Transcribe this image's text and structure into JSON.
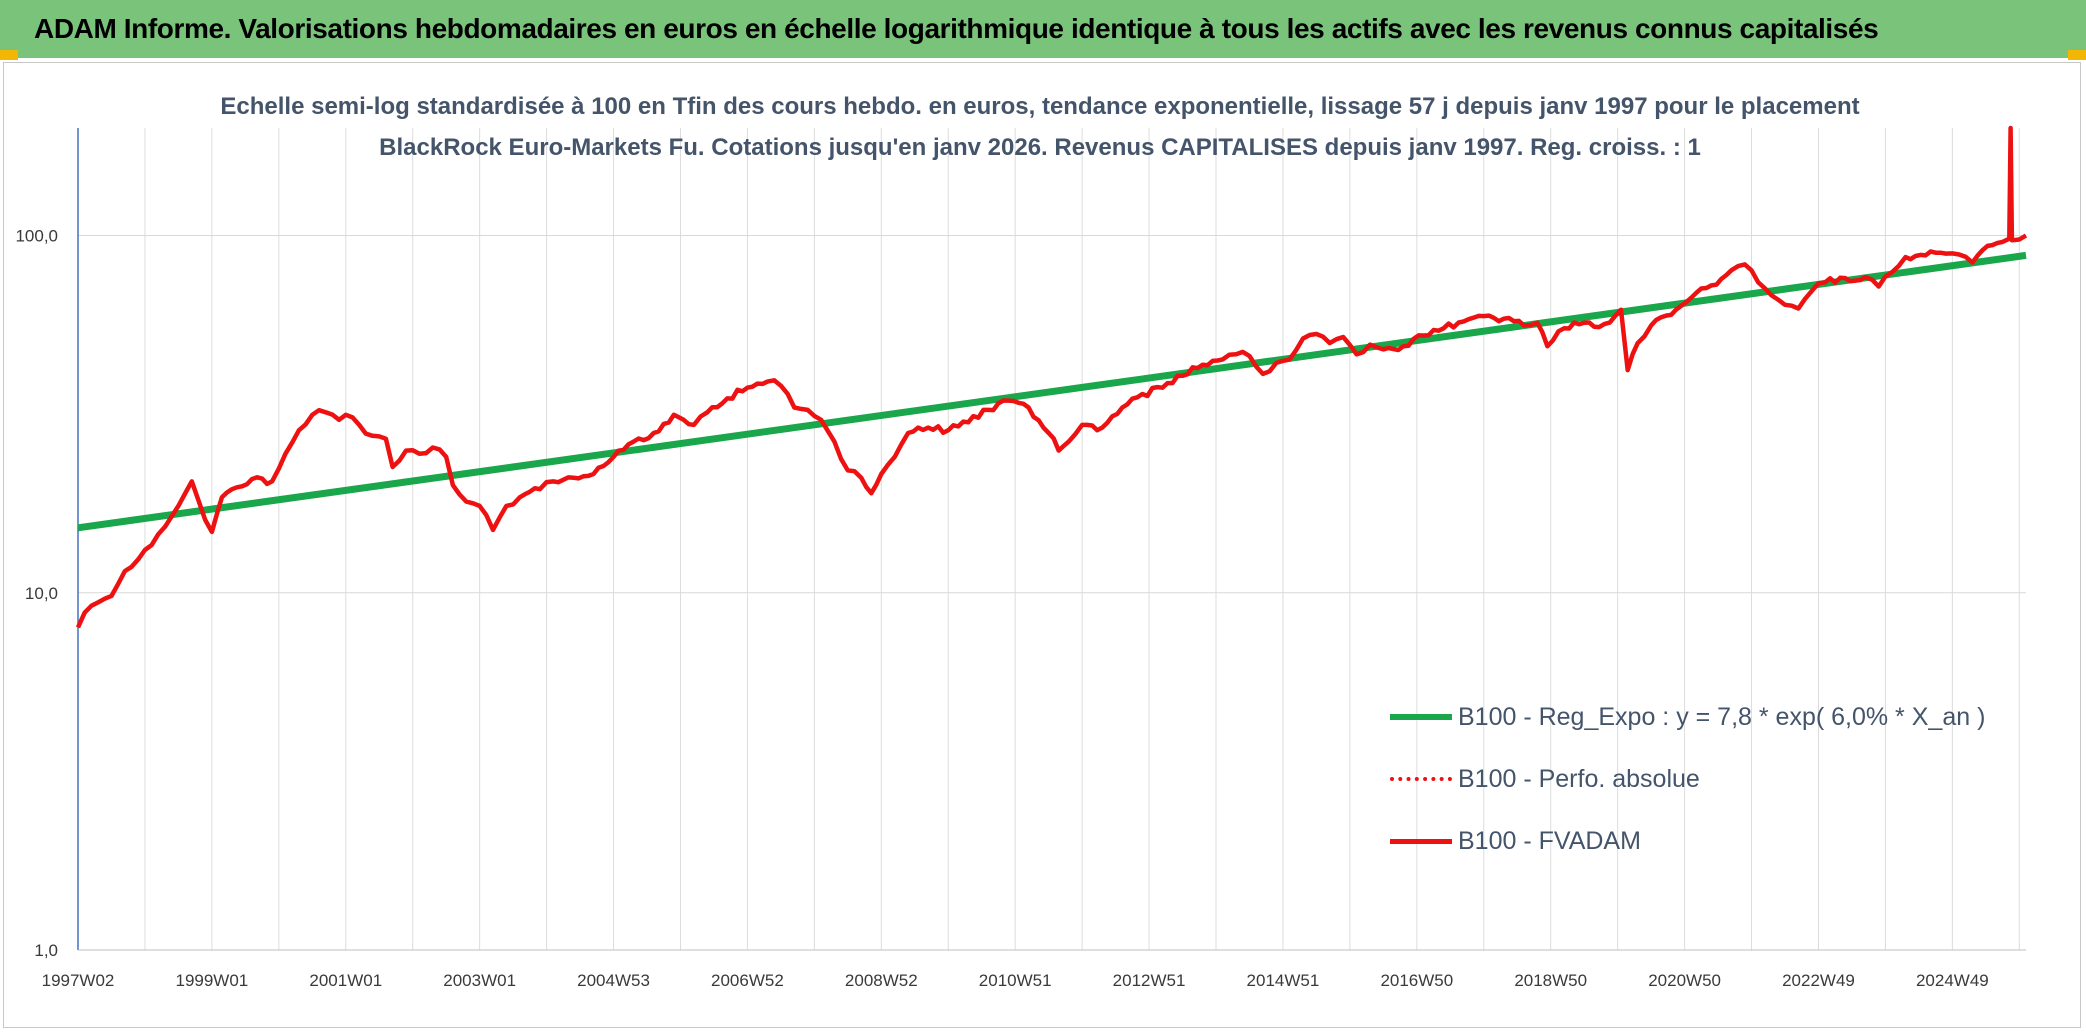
{
  "banner": {
    "title": "ADAM Informe. Valorisations hebdomadaires en euros en échelle logarithmique identique à tous les actifs avec les revenus connus capitalisés"
  },
  "colors": {
    "banner": "#79c47a",
    "corner_marks": "#f2b705",
    "trend_line": "#1aa64a",
    "price_line": "#ee1111",
    "text": "#44546a"
  },
  "chart_data": {
    "type": "line",
    "title": "Echelle semi-log standardisée à 100 en Tfin des cours hebdo. en euros, tendance exponentielle, lissage 57 j depuis janv 1997 pour le placement BlackRock Euro-Markets Fu. Cotations jusqu'en janv 2026. Revenus CAPITALISES depuis janv 1997. Reg. croiss. : 1",
    "xlabel": "",
    "ylabel": "",
    "y_scale": "log",
    "ylim": [
      1,
      200
    ],
    "xlim": [
      1997.0,
      2026.1
    ],
    "grid": true,
    "legend_position": "bottom-right",
    "y_ticks": [
      {
        "value": 1,
        "label": "1,0"
      },
      {
        "value": 10,
        "label": "10,0"
      },
      {
        "value": 100,
        "label": "100,0"
      }
    ],
    "x_ticks": [
      {
        "value": 1997.0,
        "label": "1997W02"
      },
      {
        "value": 1999.0,
        "label": "1999W01"
      },
      {
        "value": 2001.0,
        "label": "2001W01"
      },
      {
        "value": 2003.0,
        "label": "2003W01"
      },
      {
        "value": 2005.0,
        "label": "2004W53"
      },
      {
        "value": 2007.0,
        "label": "2006W52"
      },
      {
        "value": 2009.0,
        "label": "2008W52"
      },
      {
        "value": 2011.0,
        "label": "2010W51"
      },
      {
        "value": 2013.0,
        "label": "2012W51"
      },
      {
        "value": 2015.0,
        "label": "2014W51"
      },
      {
        "value": 2017.0,
        "label": "2016W50"
      },
      {
        "value": 2019.0,
        "label": "2018W50"
      },
      {
        "value": 2021.0,
        "label": "2020W50"
      },
      {
        "value": 2023.0,
        "label": "2022W49"
      },
      {
        "value": 2025.0,
        "label": "2024W49"
      }
    ],
    "series": [
      {
        "name": "B100 - Reg_Expo : y = 7,8 * exp( 6,0% *  X_an )",
        "style": "solid-thick",
        "color": "#1aa64a",
        "x": [
          1997.0,
          2026.1
        ],
        "y": [
          15.2,
          88
        ]
      },
      {
        "name": "B100 - Perfo. absolue",
        "style": "dotted",
        "color": "#ee1111",
        "x": [],
        "y": []
      },
      {
        "name": "B100 - FVADAM",
        "style": "solid",
        "color": "#ee1111",
        "x": [
          1997.0,
          1997.1,
          1997.3,
          1997.5,
          1997.7,
          1997.9,
          1998.1,
          1998.3,
          1998.5,
          1998.7,
          1998.9,
          1999.0,
          1999.15,
          1999.3,
          1999.6,
          1999.9,
          2000.1,
          2000.3,
          2000.5,
          2000.7,
          2000.9,
          2001.0,
          2001.2,
          2001.4,
          2001.6,
          2001.7,
          2001.9,
          2002.1,
          2002.3,
          2002.5,
          2002.6,
          2002.8,
          2003.0,
          2003.1,
          2003.2,
          2003.4,
          2003.6,
          2003.9,
          2004.1,
          2004.4,
          2004.7,
          2005.0,
          2005.3,
          2005.6,
          2005.9,
          2006.2,
          2006.4,
          2006.7,
          2007.0,
          2007.3,
          2007.5,
          2007.7,
          2007.9,
          2008.1,
          2008.3,
          2008.5,
          2008.7,
          2008.85,
          2009.0,
          2009.2,
          2009.4,
          2009.7,
          2010.0,
          2010.3,
          2010.6,
          2010.9,
          2011.2,
          2011.5,
          2011.65,
          2011.8,
          2012.0,
          2012.3,
          2012.6,
          2012.9,
          2013.2,
          2013.5,
          2013.8,
          2014.1,
          2014.3,
          2014.5,
          2014.7,
          2014.9,
          2015.1,
          2015.3,
          2015.5,
          2015.7,
          2015.9,
          2016.1,
          2016.3,
          2016.5,
          2016.8,
          2017.1,
          2017.4,
          2017.7,
          2018.0,
          2018.3,
          2018.6,
          2018.8,
          2018.95,
          2019.2,
          2019.5,
          2019.8,
          2020.05,
          2020.15,
          2020.3,
          2020.5,
          2020.8,
          2021.1,
          2021.4,
          2021.7,
          2021.9,
          2022.1,
          2022.3,
          2022.5,
          2022.7,
          2022.9,
          2023.1,
          2023.4,
          2023.7,
          2023.9,
          2024.1,
          2024.3,
          2024.6,
          2024.9,
          2025.1,
          2025.3,
          2025.45,
          2025.6,
          2025.75,
          2025.85,
          2025.87,
          2025.89,
          2026.0,
          2026.1
        ],
        "y": [
          8.0,
          8.8,
          9.4,
          9.8,
          11.5,
          12.4,
          13.6,
          15.3,
          17.5,
          20.5,
          16.0,
          14.8,
          18.5,
          19.5,
          20.8,
          20.5,
          24.5,
          28.5,
          31.5,
          32.0,
          30.5,
          31.5,
          29.5,
          27.5,
          27.0,
          22.5,
          25.0,
          24.5,
          25.5,
          24.0,
          20.0,
          18.0,
          17.5,
          16.5,
          15.0,
          17.5,
          18.5,
          19.5,
          20.5,
          21.0,
          21.5,
          24.0,
          26.5,
          28.0,
          31.5,
          29.5,
          32.0,
          35.0,
          37.5,
          39.0,
          38.0,
          33.0,
          32.5,
          30.5,
          26.5,
          22.0,
          21.0,
          19.0,
          21.5,
          24.0,
          28.0,
          29.0,
          28.5,
          30.0,
          32.5,
          34.5,
          33.0,
          28.0,
          25.0,
          26.5,
          29.5,
          29.0,
          33.0,
          36.0,
          37.5,
          40.5,
          43.5,
          45.0,
          46.5,
          46.0,
          41.0,
          44.0,
          45.0,
          51.5,
          53.0,
          50.0,
          52.0,
          46.5,
          49.5,
          48.0,
          49.0,
          52.5,
          55.0,
          57.5,
          59.5,
          58.5,
          56.0,
          57.0,
          49.0,
          55.0,
          57.0,
          56.5,
          62.0,
          42.0,
          50.0,
          56.0,
          60.0,
          67.0,
          72.5,
          80.0,
          83.0,
          74.0,
          68.0,
          64.0,
          62.5,
          70.0,
          74.0,
          76.0,
          76.5,
          72.0,
          79.0,
          87.0,
          88.0,
          89.0,
          88.5,
          84.0,
          91.0,
          94.0,
          96.0,
          98.0,
          200.0,
          97.0,
          97.5,
          100.0
        ]
      }
    ]
  },
  "legend": {
    "items": [
      {
        "label": "B100 - Reg_Expo : y = 7,8 * exp( 6,0% *  X_an )"
      },
      {
        "label": "B100 - Perfo. absolue"
      },
      {
        "label": "B100 - FVADAM"
      }
    ]
  }
}
